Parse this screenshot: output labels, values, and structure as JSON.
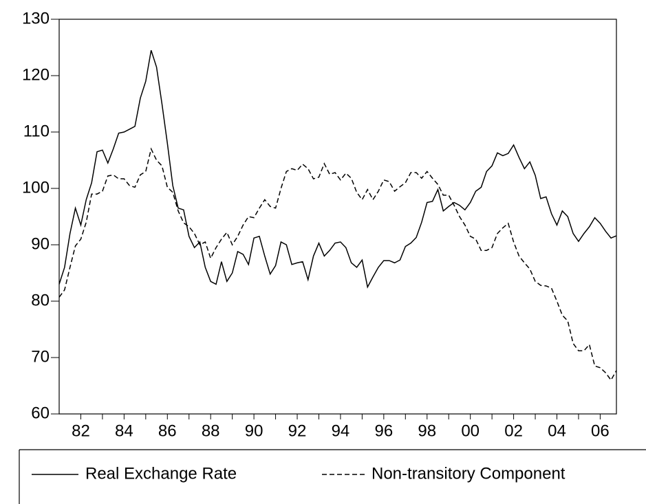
{
  "chart_data": {
    "type": "line",
    "x": [
      1981,
      1981.25,
      1981.5,
      1981.75,
      1982,
      1982.25,
      1982.5,
      1982.75,
      1983,
      1983.25,
      1983.5,
      1983.75,
      1984,
      1984.25,
      1984.5,
      1984.75,
      1985,
      1985.25,
      1985.5,
      1985.75,
      1986,
      1986.25,
      1986.5,
      1986.75,
      1987,
      1987.25,
      1987.5,
      1987.75,
      1988,
      1988.25,
      1988.5,
      1988.75,
      1989,
      1989.25,
      1989.5,
      1989.75,
      1990,
      1990.25,
      1990.5,
      1990.75,
      1991,
      1991.25,
      1991.5,
      1991.75,
      1992,
      1992.25,
      1992.5,
      1992.75,
      1993,
      1993.25,
      1993.5,
      1993.75,
      1994,
      1994.25,
      1994.5,
      1994.75,
      1995,
      1995.25,
      1995.5,
      1995.75,
      1996,
      1996.25,
      1996.5,
      1996.75,
      1997,
      1997.25,
      1997.5,
      1997.75,
      1998,
      1998.25,
      1998.5,
      1998.75,
      1999,
      1999.25,
      1999.5,
      1999.75,
      2000,
      2000.25,
      2000.5,
      2000.75,
      2001,
      2001.25,
      2001.5,
      2001.75,
      2002,
      2002.25,
      2002.5,
      2002.75,
      2003,
      2003.25,
      2003.5,
      2003.75,
      2004,
      2004.25,
      2004.5,
      2004.75,
      2005,
      2005.25,
      2005.5,
      2005.75,
      2006,
      2006.25,
      2006.5,
      2006.75
    ],
    "series": [
      {
        "name": "Real Exchange Rate",
        "color": "#000000",
        "line_style": "solid",
        "values": [
          83,
          86,
          92,
          96.5,
          93.5,
          98,
          101,
          106.5,
          106.8,
          104.5,
          107,
          109.8,
          110,
          110.5,
          111,
          116,
          119,
          124.5,
          121.5,
          115,
          108,
          100.5,
          96.5,
          96.2,
          91.5,
          89.5,
          90.5,
          86,
          83.5,
          83,
          87,
          83.5,
          85,
          88.8,
          88.3,
          86.5,
          91.2,
          91.5,
          88,
          84.8,
          86.3,
          90.5,
          90,
          86.5,
          86.8,
          87,
          83.8,
          88,
          90.3,
          88,
          89,
          90.3,
          90.5,
          89.5,
          86.8,
          86,
          87.3,
          82.5,
          84.3,
          86,
          87.2,
          87.2,
          86.8,
          87.3,
          89.7,
          90.3,
          91.3,
          94,
          97.5,
          97.7,
          99.8,
          96,
          96.8,
          97.5,
          97,
          96.2,
          97.5,
          99.5,
          100.2,
          103,
          104,
          106.3,
          105.8,
          106.2,
          107.7,
          105.5,
          103.5,
          104.7,
          102.3,
          98.2,
          98.5,
          95.5,
          93.5,
          96,
          95,
          92,
          90.6,
          92,
          93.2,
          94.8,
          93.8,
          92.4,
          91.2,
          91.6
        ]
      },
      {
        "name": "Non-transitory Component",
        "color": "#000000",
        "line_style": "dashed",
        "values": [
          80.7,
          82,
          86,
          89.8,
          91,
          94,
          99,
          99,
          99.5,
          102.2,
          102.4,
          101.7,
          101.7,
          100.5,
          100.2,
          102.4,
          103,
          107,
          105,
          104,
          100.2,
          99.3,
          96,
          93.9,
          93.2,
          92,
          90,
          90.5,
          87.6,
          89.5,
          91,
          92.2,
          90,
          91.5,
          93.5,
          95,
          94.8,
          96.5,
          98,
          96.8,
          96.5,
          100,
          103,
          103.5,
          103.2,
          104.3,
          103.5,
          101.7,
          102,
          104.4,
          102.5,
          102.8,
          101.5,
          102.7,
          101.8,
          99.3,
          98,
          99.8,
          98,
          99.5,
          101.5,
          101.2,
          99.5,
          100.3,
          101,
          102.8,
          102.8,
          101.8,
          103,
          101.8,
          100.7,
          98.8,
          98.8,
          97,
          95,
          93.5,
          91.5,
          91,
          89,
          89,
          89.5,
          92,
          93,
          93.8,
          90.5,
          88,
          86.8,
          85.7,
          83.5,
          82.8,
          82.7,
          82.3,
          80,
          77.5,
          76.5,
          72.5,
          71.2,
          71.2,
          72.3,
          68.5,
          68.2,
          67.3,
          66,
          67.7
        ]
      }
    ],
    "xlim": [
      1981,
      2006.75
    ],
    "xticks": [
      {
        "value": 1982,
        "label": "82"
      },
      {
        "value": 1984,
        "label": "84"
      },
      {
        "value": 1986,
        "label": "86"
      },
      {
        "value": 1988,
        "label": "88"
      },
      {
        "value": 1990,
        "label": "90"
      },
      {
        "value": 1992,
        "label": "92"
      },
      {
        "value": 1994,
        "label": "94"
      },
      {
        "value": 1996,
        "label": "96"
      },
      {
        "value": 1998,
        "label": "98"
      },
      {
        "value": 2000,
        "label": "00"
      },
      {
        "value": 2002,
        "label": "02"
      },
      {
        "value": 2004,
        "label": "04"
      },
      {
        "value": 2006,
        "label": "06"
      }
    ],
    "ylim": [
      60,
      130
    ],
    "yticks": [
      60,
      70,
      80,
      90,
      100,
      110,
      120,
      130
    ],
    "grid": false,
    "legend": "bottom"
  }
}
